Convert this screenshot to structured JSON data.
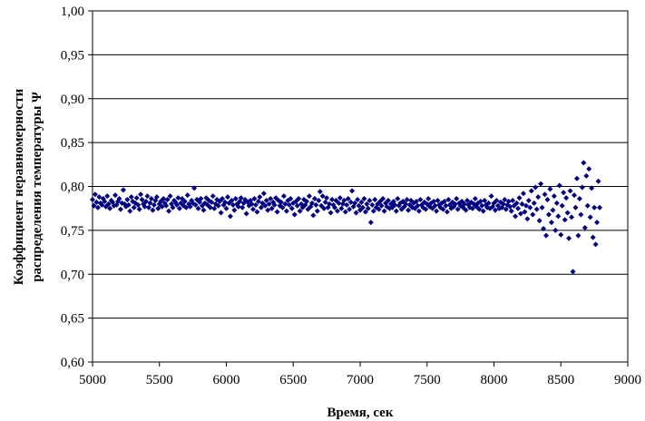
{
  "chart_data": {
    "type": "scatter",
    "title": "",
    "xlabel": "Время, сек",
    "ylabel_lines": [
      "Коэффициент неравномерности",
      "распределения температуры Ψ"
    ],
    "xlim": [
      5000,
      9000
    ],
    "ylim": [
      0.6,
      1.0
    ],
    "xticks": [
      "5000",
      "5500",
      "6000",
      "6500",
      "7000",
      "7500",
      "8000",
      "8500",
      "9000"
    ],
    "yticks": [
      "0,60",
      "0,65",
      "0,70",
      "0,75",
      "0,80",
      "0,85",
      "0,90",
      "0,95",
      "1,00"
    ],
    "grid": "horizontal",
    "legend": "none",
    "marker_color": "#000080",
    "x_start": 5000,
    "x_step": 10,
    "y": [
      0.785,
      0.778,
      0.791,
      0.782,
      0.776,
      0.788,
      0.781,
      0.779,
      0.786,
      0.783,
      0.777,
      0.789,
      0.78,
      0.775,
      0.784,
      0.782,
      0.778,
      0.79,
      0.779,
      0.783,
      0.786,
      0.774,
      0.781,
      0.796,
      0.78,
      0.777,
      0.785,
      0.779,
      0.772,
      0.788,
      0.783,
      0.776,
      0.781,
      0.787,
      0.779,
      0.774,
      0.791,
      0.785,
      0.78,
      0.777,
      0.783,
      0.789,
      0.776,
      0.781,
      0.786,
      0.773,
      0.779,
      0.784,
      0.788,
      0.775,
      0.78,
      0.783,
      0.777,
      0.786,
      0.781,
      0.778,
      0.785,
      0.772,
      0.789,
      0.78,
      0.776,
      0.784,
      0.782,
      0.779,
      0.787,
      0.775,
      0.781,
      0.786,
      0.778,
      0.783,
      0.776,
      0.79,
      0.78,
      0.777,
      0.784,
      0.781,
      0.798,
      0.779,
      0.785,
      0.775,
      0.782,
      0.786,
      0.778,
      0.773,
      0.781,
      0.787,
      0.779,
      0.784,
      0.776,
      0.782,
      0.789,
      0.775,
      0.78,
      0.785,
      0.778,
      0.783,
      0.77,
      0.786,
      0.779,
      0.782,
      0.775,
      0.788,
      0.781,
      0.766,
      0.784,
      0.779,
      0.773,
      0.786,
      0.78,
      0.777,
      0.783,
      0.787,
      0.776,
      0.781,
      0.785,
      0.769,
      0.782,
      0.778,
      0.784,
      0.78,
      0.774,
      0.786,
      0.779,
      0.771,
      0.783,
      0.788,
      0.776,
      0.781,
      0.792,
      0.778,
      0.784,
      0.773,
      0.78,
      0.786,
      0.775,
      0.782,
      0.779,
      0.787,
      0.771,
      0.784,
      0.778,
      0.782,
      0.776,
      0.789,
      0.78,
      0.772,
      0.784,
      0.779,
      0.786,
      0.775,
      0.781,
      0.768,
      0.783,
      0.778,
      0.786,
      0.772,
      0.78,
      0.776,
      0.785,
      0.779,
      0.783,
      0.774,
      0.789,
      0.777,
      0.781,
      0.767,
      0.786,
      0.779,
      0.772,
      0.784,
      0.794,
      0.778,
      0.789,
      0.775,
      0.782,
      0.787,
      0.776,
      0.78,
      0.77,
      0.785,
      0.779,
      0.776,
      0.784,
      0.772,
      0.781,
      0.787,
      0.775,
      0.78,
      0.784,
      0.771,
      0.779,
      0.786,
      0.774,
      0.782,
      0.795,
      0.777,
      0.781,
      0.77,
      0.785,
      0.778,
      0.773,
      0.782,
      0.776,
      0.786,
      0.771,
      0.78,
      0.775,
      0.784,
      0.759,
      0.779,
      0.772,
      0.785,
      0.776,
      0.78,
      0.774,
      0.783,
      0.778,
      0.786,
      0.772,
      0.781,
      0.777,
      0.784,
      0.775,
      0.78,
      0.776,
      0.783,
      0.779,
      0.772,
      0.786,
      0.778,
      0.781,
      0.774,
      0.783,
      0.777,
      0.78,
      0.785,
      0.773,
      0.779,
      0.784,
      0.776,
      0.781,
      0.775,
      0.783,
      0.778,
      0.772,
      0.785,
      0.779,
      0.776,
      0.782,
      0.774,
      0.78,
      0.786,
      0.777,
      0.781,
      0.775,
      0.783,
      0.778,
      0.772,
      0.784,
      0.779,
      0.776,
      0.781,
      0.774,
      0.783,
      0.778,
      0.771,
      0.785,
      0.779,
      0.775,
      0.782,
      0.777,
      0.78,
      0.786,
      0.774,
      0.781,
      0.778,
      0.783,
      0.776,
      0.78,
      0.773,
      0.784,
      0.779,
      0.776,
      0.782,
      0.775,
      0.78,
      0.786,
      0.777,
      0.781,
      0.774,
      0.783,
      0.778,
      0.772,
      0.784,
      0.779,
      0.776,
      0.781,
      0.775,
      0.789,
      0.777,
      0.781,
      0.773,
      0.784,
      0.778,
      0.775,
      0.782,
      0.776,
      0.78,
      0.785,
      0.774,
      0.779,
      0.783,
      0.777,
      0.772,
      0.784,
      0.778,
      0.766,
      0.781,
      0.775,
      0.787,
      0.769,
      0.78,
      0.792,
      0.771,
      0.778,
      0.763,
      0.784,
      0.776,
      0.795,
      0.768,
      0.781,
      0.799,
      0.774,
      0.788,
      0.761,
      0.803,
      0.776,
      0.752,
      0.791,
      0.744,
      0.785,
      0.768,
      0.797,
      0.759,
      0.773,
      0.789,
      0.75,
      0.781,
      0.766,
      0.801,
      0.745,
      0.778,
      0.793,
      0.762,
      0.787,
      0.77,
      0.741,
      0.795,
      0.765,
      0.703,
      0.79,
      0.776,
      0.809,
      0.744,
      0.786,
      0.768,
      0.799,
      0.827,
      0.753,
      0.812,
      0.778,
      0.82,
      0.765,
      0.798,
      0.742,
      0.776,
      0.734,
      0.759,
      0.806,
      0.776
    ]
  }
}
